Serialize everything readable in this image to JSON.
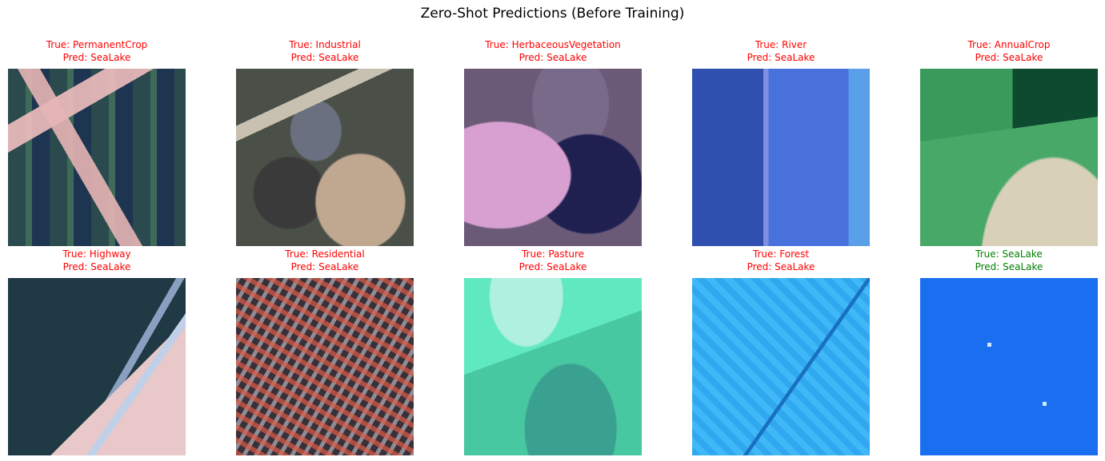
{
  "figure": {
    "title": "Zero-Shot Predictions (Before Training)",
    "colors": {
      "incorrect": "#ff0000",
      "correct": "#008000"
    },
    "panels": [
      {
        "true_label": "True: PermanentCrop",
        "pred_label": "Pred: SeaLake",
        "correct": false
      },
      {
        "true_label": "True: Industrial",
        "pred_label": "Pred: SeaLake",
        "correct": false
      },
      {
        "true_label": "True: HerbaceousVegetation",
        "pred_label": "Pred: SeaLake",
        "correct": false
      },
      {
        "true_label": "True: River",
        "pred_label": "Pred: SeaLake",
        "correct": false
      },
      {
        "true_label": "True: AnnualCrop",
        "pred_label": "Pred: SeaLake",
        "correct": false
      },
      {
        "true_label": "True: Highway",
        "pred_label": "Pred: SeaLake",
        "correct": false
      },
      {
        "true_label": "True: Residential",
        "pred_label": "Pred: SeaLake",
        "correct": false
      },
      {
        "true_label": "True: Pasture",
        "pred_label": "Pred: SeaLake",
        "correct": false
      },
      {
        "true_label": "True: Forest",
        "pred_label": "Pred: SeaLake",
        "correct": false
      },
      {
        "true_label": "True: SeaLake",
        "pred_label": "Pred: SeaLake",
        "correct": true
      }
    ]
  }
}
